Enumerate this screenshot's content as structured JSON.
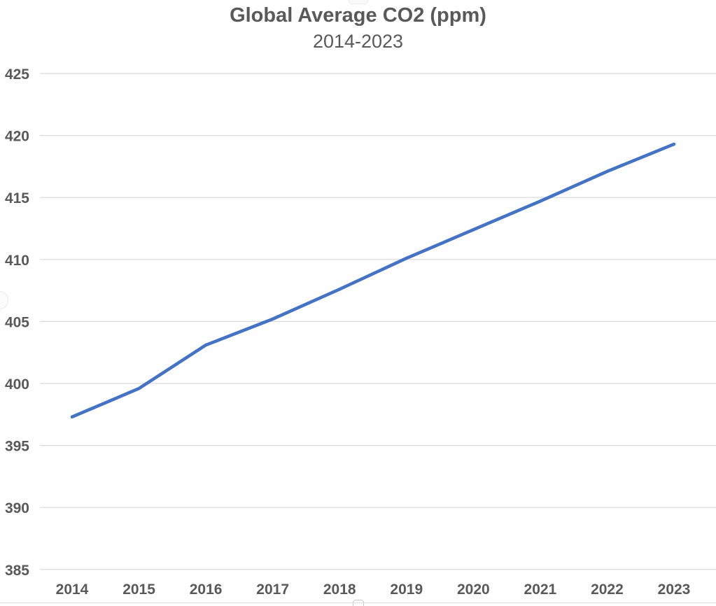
{
  "chart_data": {
    "type": "line",
    "title": "Global Average CO2 (ppm)",
    "subtitle": "2014-2023",
    "categories": [
      "2014",
      "2015",
      "2016",
      "2017",
      "2018",
      "2019",
      "2020",
      "2021",
      "2022",
      "2023"
    ],
    "series": [
      {
        "name": "Global Average CO2 (ppm)",
        "color": "#4472C4",
        "values": [
          397.3,
          399.6,
          403.1,
          405.2,
          407.6,
          410.1,
          412.4,
          414.7,
          417.1,
          419.3
        ]
      }
    ],
    "xlabel": "",
    "ylabel": "",
    "ylim": [
      385,
      425
    ],
    "y_tick_step": 5,
    "y_ticks": [
      "425",
      "420",
      "415",
      "410",
      "405",
      "400",
      "395",
      "390",
      "385"
    ],
    "grid": "horizontal",
    "legend": "none"
  },
  "colors": {
    "line": "#4472C4",
    "gridline": "#d9d9d9",
    "text": "#595959",
    "background": "#ffffff"
  }
}
